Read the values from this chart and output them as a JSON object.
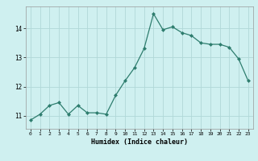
{
  "x": [
    0,
    1,
    2,
    3,
    4,
    5,
    6,
    7,
    8,
    9,
    10,
    11,
    12,
    13,
    14,
    15,
    16,
    17,
    18,
    19,
    20,
    21,
    22,
    23
  ],
  "y": [
    10.85,
    11.05,
    11.35,
    11.45,
    11.05,
    11.35,
    11.1,
    11.1,
    11.05,
    11.7,
    12.2,
    12.65,
    13.3,
    14.5,
    13.95,
    14.05,
    13.85,
    13.75,
    13.5,
    13.45,
    13.45,
    13.35,
    12.95,
    12.2
  ],
  "line_color": "#2e7d6e",
  "bg_color": "#cff0f0",
  "grid_color": "#b0d8d8",
  "xlabel": "Humidex (Indice chaleur)",
  "ylabel_ticks": [
    11,
    12,
    13,
    14
  ],
  "xtick_labels": [
    "0",
    "1",
    "2",
    "3",
    "4",
    "5",
    "6",
    "7",
    "8",
    "9",
    "10",
    "11",
    "12",
    "13",
    "14",
    "15",
    "16",
    "17",
    "18",
    "19",
    "20",
    "21",
    "22",
    "23"
  ],
  "ylim": [
    10.55,
    14.75
  ],
  "xlim": [
    -0.5,
    23.5
  ]
}
